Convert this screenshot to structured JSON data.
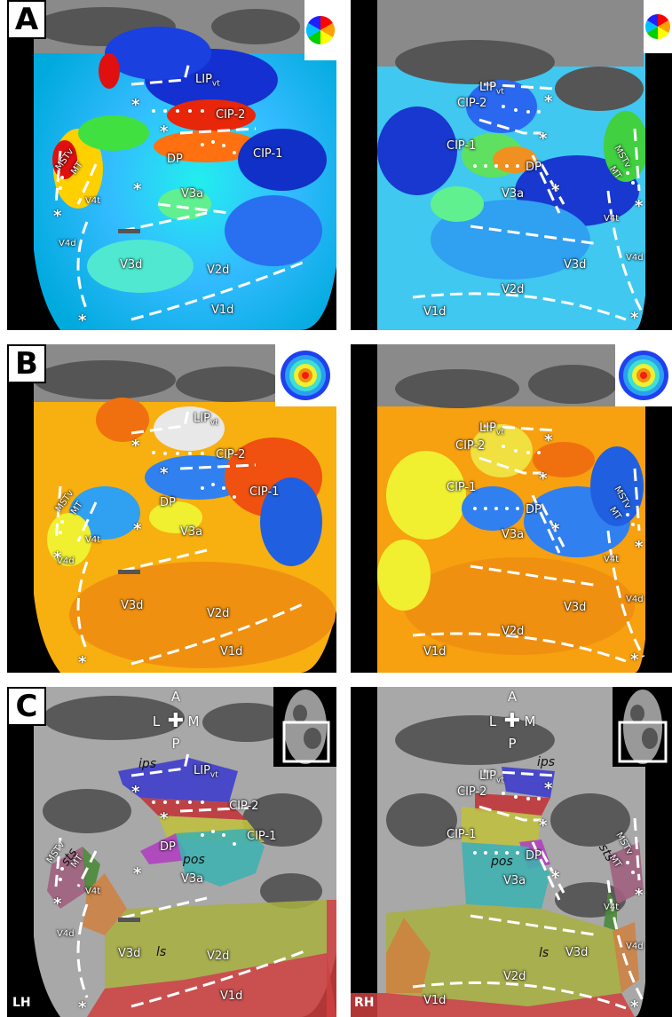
{
  "panels": {
    "A": {
      "label": "A",
      "legend": "color-wheel"
    },
    "B": {
      "label": "B",
      "legend": "concentric-rings"
    },
    "C": {
      "label": "C",
      "legend": "brain-inset"
    }
  },
  "areas": {
    "lipvt_main": "LIP",
    "lipvt_sub": "vt",
    "cip2": "CIP-2",
    "cip1": "CIP-1",
    "dp": "DP",
    "v3a": "V3a",
    "mstv": "MSTv",
    "mt": "MT",
    "v4t": "V4t",
    "v4d": "V4d",
    "v3d": "V3d",
    "v2d": "V2d",
    "v1d": "V1d"
  },
  "sulci": {
    "ips": "ips",
    "pos": "pos",
    "ls": "ls",
    "sts": "sts"
  },
  "orientation": {
    "anterior": "A",
    "lateral": "L",
    "medial": "M",
    "posterior": "P",
    "cross": "✚"
  },
  "hemispheres": {
    "left": "LH",
    "right": "RH"
  },
  "asterisk": "*"
}
